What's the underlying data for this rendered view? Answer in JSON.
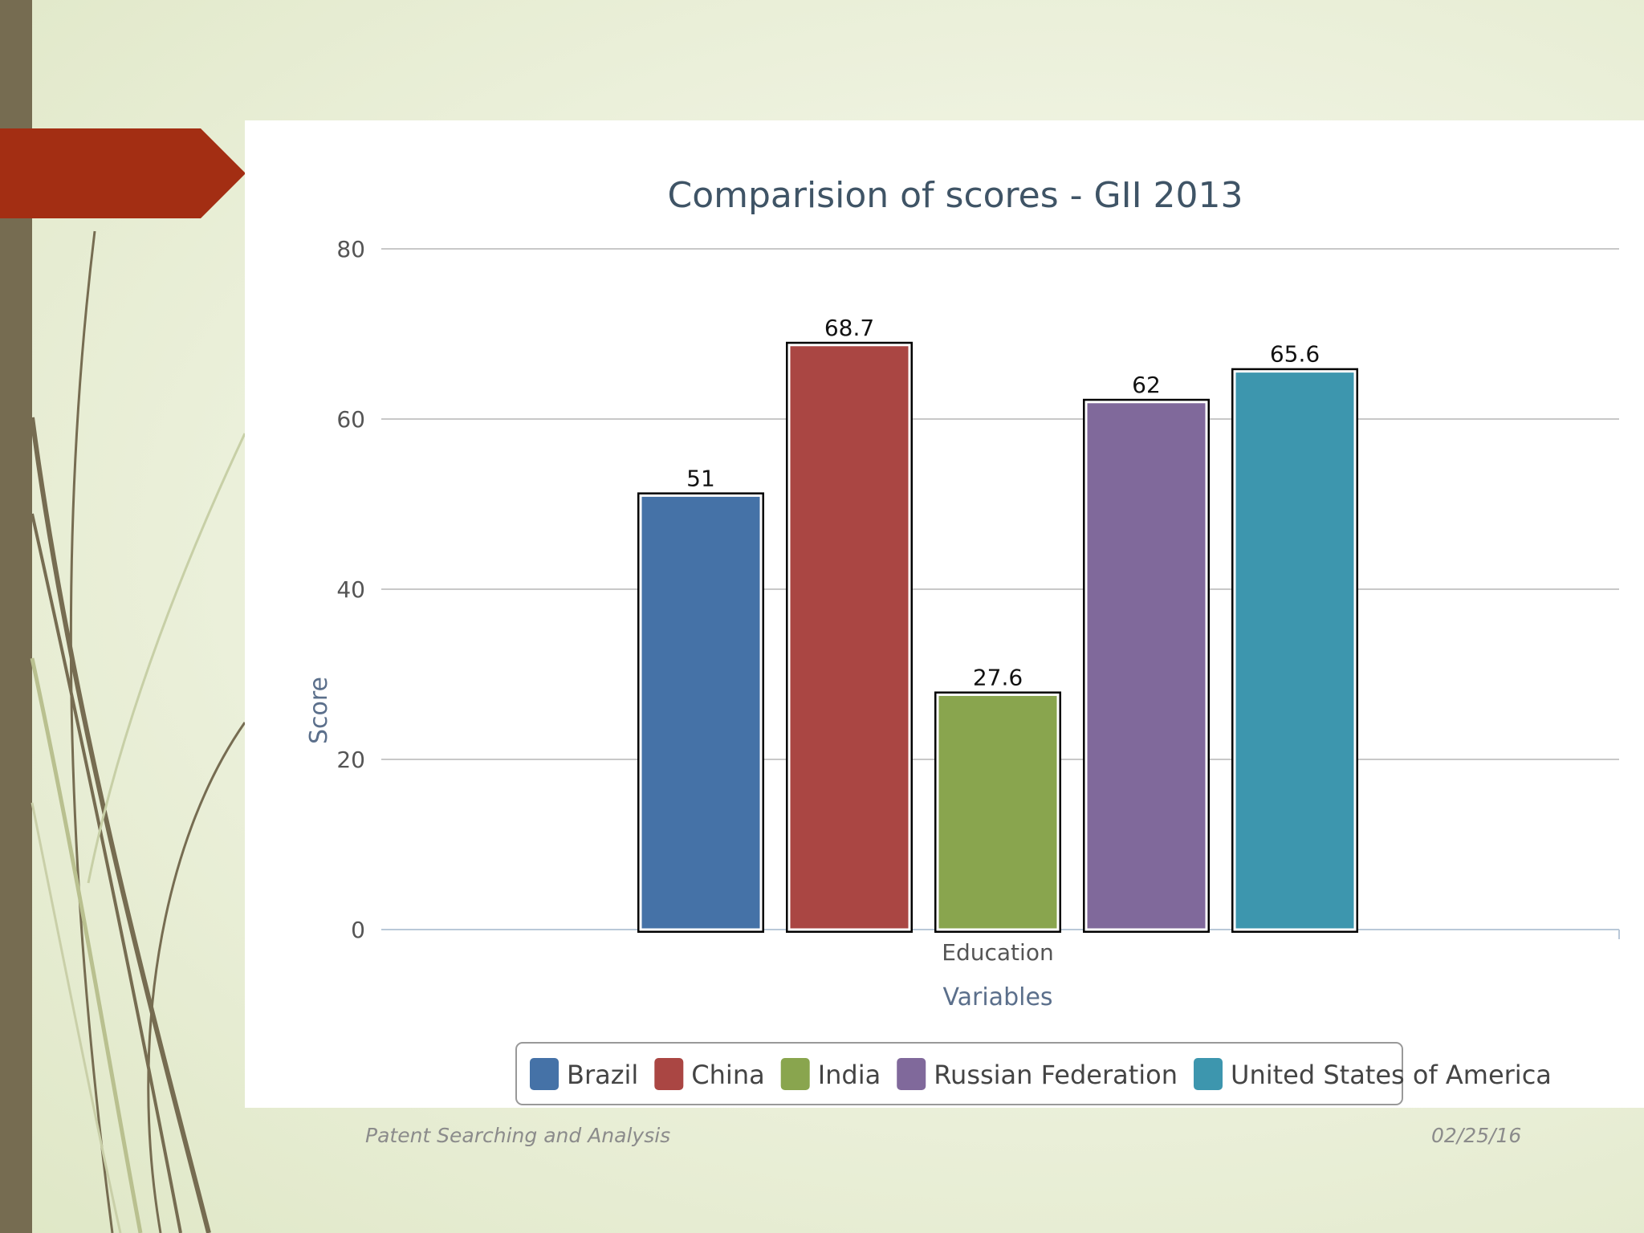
{
  "footer": {
    "left": "Patent Searching and Analysis",
    "right": "02/25/16"
  },
  "colors": {
    "left_bar": "#766c51",
    "arrow": "#a32e13",
    "swirl": "#766c51"
  },
  "chart_data": {
    "type": "bar",
    "title": "Comparision of scores - GII 2013",
    "xlabel": "Variables",
    "ylabel": "Score",
    "categories": [
      "Education"
    ],
    "ylim": [
      0,
      80
    ],
    "yticks": [
      0,
      20,
      40,
      60,
      80
    ],
    "grid": true,
    "legend_position": "bottom",
    "series": [
      {
        "name": "Brazil",
        "values": [
          51
        ],
        "label": "51",
        "color": "#4572a7"
      },
      {
        "name": "China",
        "values": [
          68.7
        ],
        "label": "68.7",
        "color": "#aa4643"
      },
      {
        "name": "India",
        "values": [
          27.6
        ],
        "label": "27.6",
        "color": "#89a54e"
      },
      {
        "name": "Russian Federation",
        "values": [
          62
        ],
        "label": "62",
        "color": "#80699b"
      },
      {
        "name": "United States of America",
        "values": [
          65.6
        ],
        "label": "65.6",
        "color": "#3d96ae"
      }
    ]
  }
}
